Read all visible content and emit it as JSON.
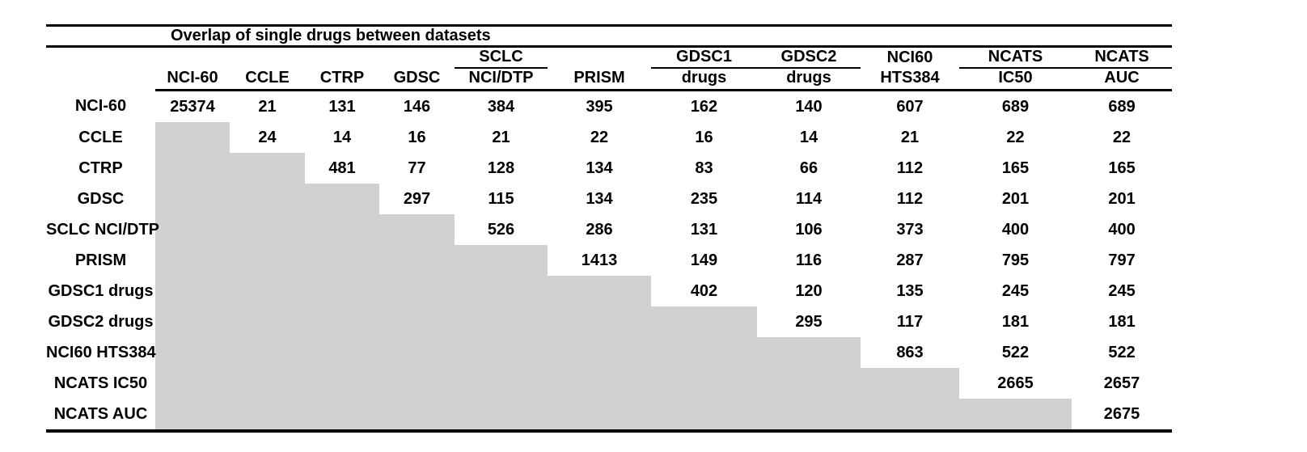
{
  "figure": {
    "title": "Overlap of single drugs between datasets"
  },
  "table": {
    "upper_headers": [
      "",
      "",
      "",
      "",
      "SCLC",
      "",
      "GDSC1",
      "GDSC2",
      "NCI60",
      "NCATS",
      "NCATS"
    ],
    "underlined_upper": [
      false,
      false,
      false,
      false,
      true,
      false,
      true,
      true,
      false,
      true,
      true
    ],
    "lower_headers": [
      "NCI-60",
      "CCLE",
      "CTRP",
      "GDSC",
      "NCI/DTP",
      "PRISM",
      "drugs",
      "drugs",
      "HTS384",
      "IC50",
      "AUC"
    ],
    "row_labels": [
      "NCI-60",
      "CCLE",
      "CTRP",
      "GDSC",
      "SCLC NCI/DTP",
      "PRISM",
      "GDSC1 drugs",
      "GDSC2 drugs",
      "NCI60 HTS384",
      "NCATS IC50",
      "NCATS AUC"
    ]
  },
  "chart_data": {
    "type": "table",
    "title": "Overlap of single drugs between datasets",
    "description": "Upper-triangular pairwise overlap matrix of single drugs between datasets; diagonal cells give drug counts per dataset; lower triangle is shaded gray (empty).",
    "columns": [
      "NCI-60",
      "CCLE",
      "CTRP",
      "GDSC",
      "SCLC NCI/DTP",
      "PRISM",
      "GDSC1 drugs",
      "GDSC2 drugs",
      "NCI60 HTS384",
      "NCATS IC50",
      "NCATS AUC"
    ],
    "rows": [
      "NCI-60",
      "CCLE",
      "CTRP",
      "GDSC",
      "SCLC NCI/DTP",
      "PRISM",
      "GDSC1 drugs",
      "GDSC2 drugs",
      "NCI60 HTS384",
      "NCATS IC50",
      "NCATS AUC"
    ],
    "matrix": [
      [
        25374,
        21,
        131,
        146,
        384,
        395,
        162,
        140,
        607,
        689,
        689
      ],
      [
        null,
        24,
        14,
        16,
        21,
        22,
        16,
        14,
        21,
        22,
        22
      ],
      [
        null,
        null,
        481,
        77,
        128,
        134,
        83,
        66,
        112,
        165,
        165
      ],
      [
        null,
        null,
        null,
        297,
        115,
        134,
        235,
        114,
        112,
        201,
        201
      ],
      [
        null,
        null,
        null,
        null,
        526,
        286,
        131,
        106,
        373,
        400,
        400
      ],
      [
        null,
        null,
        null,
        null,
        null,
        1413,
        149,
        116,
        287,
        795,
        797
      ],
      [
        null,
        null,
        null,
        null,
        null,
        null,
        402,
        120,
        135,
        245,
        245
      ],
      [
        null,
        null,
        null,
        null,
        null,
        null,
        null,
        295,
        117,
        181,
        181
      ],
      [
        null,
        null,
        null,
        null,
        null,
        null,
        null,
        null,
        863,
        522,
        522
      ],
      [
        null,
        null,
        null,
        null,
        null,
        null,
        null,
        null,
        null,
        2665,
        2657
      ],
      [
        null,
        null,
        null,
        null,
        null,
        null,
        null,
        null,
        null,
        null,
        2675
      ]
    ]
  },
  "colors": {
    "background": "#ffffff",
    "shade": "#d1d1d1",
    "text": "#000000",
    "rule": "#000000"
  }
}
